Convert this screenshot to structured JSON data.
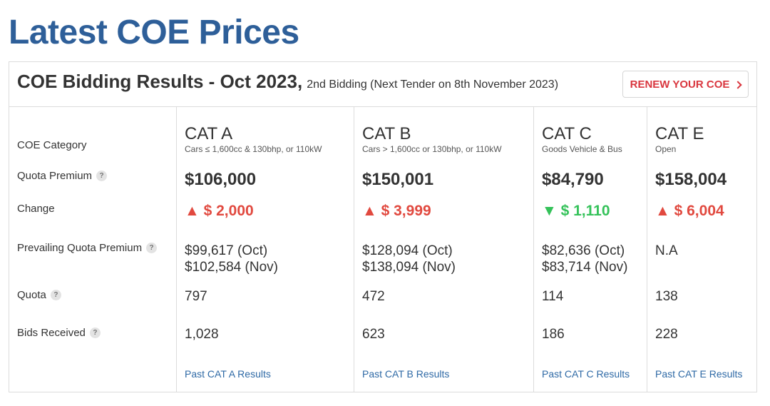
{
  "page_title": "Latest COE Prices",
  "card": {
    "title": "COE Bidding Results - Oct 2023,",
    "subtitle": "2nd Bidding (Next Tender on 8th November 2023)",
    "renew_button": "RENEW YOUR COE"
  },
  "row_labels": {
    "category": "COE Category",
    "quota_premium": "Quota Premium",
    "change": "Change",
    "prevailing": "Prevailing Quota Premium",
    "quota": "Quota",
    "bids": "Bids Received"
  },
  "help_glyph": "?",
  "categories": [
    {
      "name": "CAT A",
      "desc": "Cars ≤ 1,600cc & 130bhp, or 110kW",
      "premium": "$106,000",
      "change": "▲ $ 2,000",
      "change_dir": "up",
      "pqp_line1": "$99,617 (Oct)",
      "pqp_line2": "$102,584 (Nov)",
      "quota": "797",
      "bids": "1,028",
      "link": "Past CAT A Results"
    },
    {
      "name": "CAT B",
      "desc": "Cars > 1,600cc or 130bhp, or 110kW",
      "premium": "$150,001",
      "change": "▲ $ 3,999",
      "change_dir": "up",
      "pqp_line1": "$128,094 (Oct)",
      "pqp_line2": "$138,094 (Nov)",
      "quota": "472",
      "bids": "623",
      "link": "Past CAT B Results"
    },
    {
      "name": "CAT C",
      "desc": "Goods Vehicle & Bus",
      "premium": "$84,790",
      "change": "▼ $ 1,110",
      "change_dir": "down",
      "pqp_line1": "$82,636 (Oct)",
      "pqp_line2": "$83,714 (Nov)",
      "quota": "114",
      "bids": "186",
      "link": "Past CAT C Results"
    },
    {
      "name": "CAT E",
      "desc": "Open",
      "premium": "$158,004",
      "change": "▲ $ 6,004",
      "change_dir": "up",
      "pqp_line1": "N.A",
      "pqp_line2": "",
      "quota": "138",
      "bids": "228",
      "link": "Past CAT E Results"
    }
  ],
  "colors": {
    "title_blue": "#2e5f99",
    "renew_red": "#d9363e",
    "up_red": "#e1493f",
    "down_green": "#35c25a",
    "link_blue": "#2f6aa6"
  }
}
